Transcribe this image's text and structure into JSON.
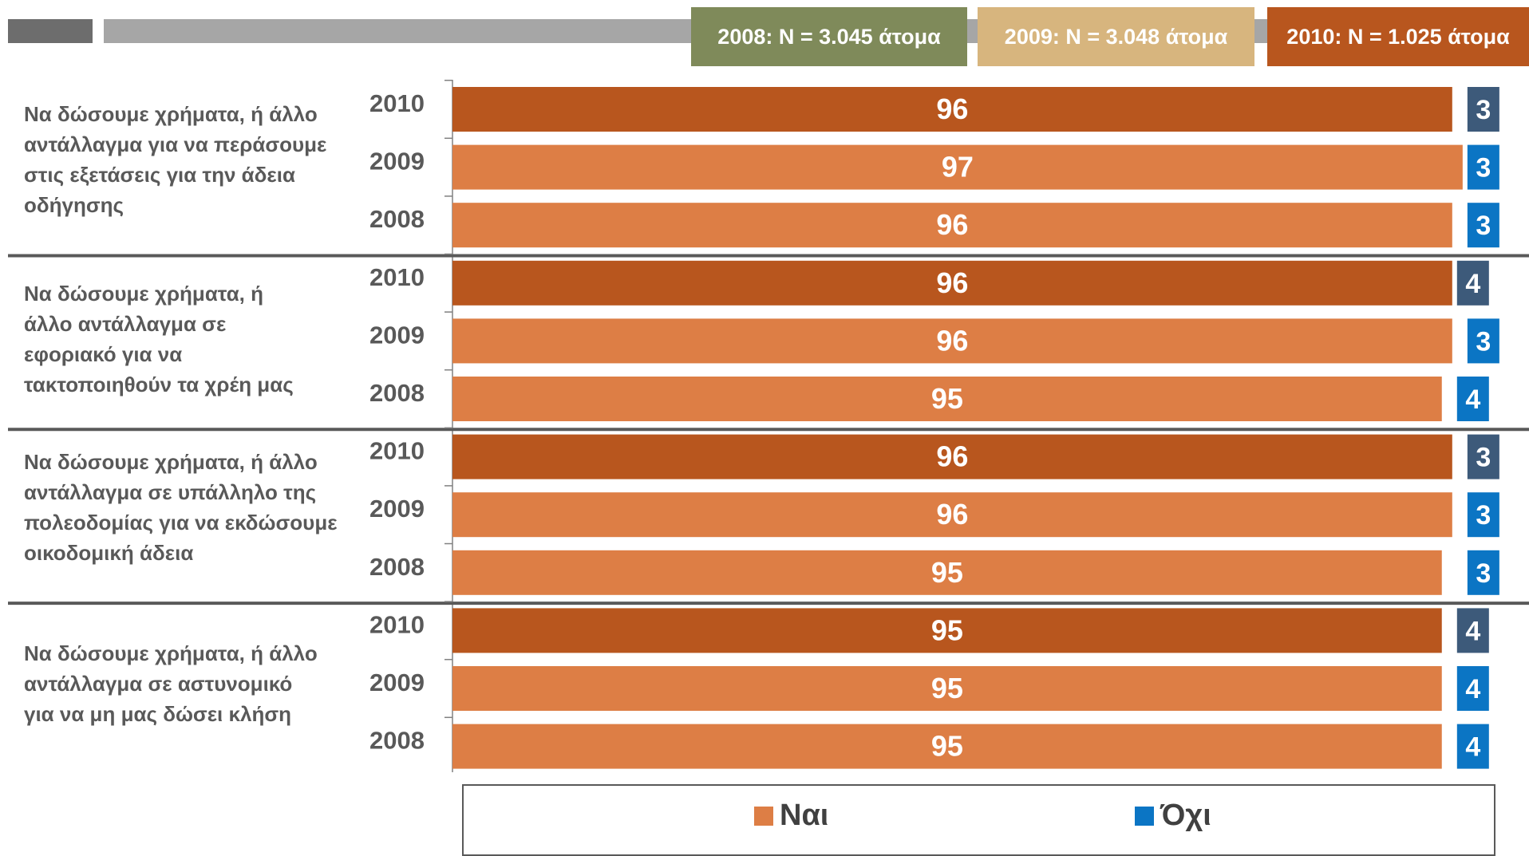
{
  "header": {
    "n_2008": "2008: N = 3.045 άτομα",
    "n_2009": "2009: N = 3.048 άτομα",
    "n_2010": "2010: N = 1.025 άτομα"
  },
  "colors": {
    "yes_2010": "#b8561e",
    "yes_other": "#dd7e45",
    "no_dark": "#3d5a7a",
    "no_blue": "#0b75c4",
    "n2008_box": "#7f8a5a",
    "n2009_box": "#d7b57e",
    "n2010_box": "#b8561e"
  },
  "legend": {
    "yes_label": "Ναι",
    "no_label": "Όχι"
  },
  "chart_data": {
    "type": "bar",
    "orientation": "horizontal",
    "stacked": true,
    "series": [
      {
        "name": "Ναι"
      },
      {
        "name": "Όχι"
      }
    ],
    "groups": [
      {
        "label": "Να δώσουμε χρήματα, ή άλλο αντάλλαγμα για να περάσουμε στις εξετάσεις για την άδεια οδήγησης",
        "rows": [
          {
            "year": "2010",
            "yes": 96,
            "no": 3
          },
          {
            "year": "2009",
            "yes": 97,
            "no": 3
          },
          {
            "year": "2008",
            "yes": 96,
            "no": 3
          }
        ]
      },
      {
        "label": "Να δώσουμε χρήματα, ή άλλο αντάλλαγμα σε εφοριακό για να τακτοποιηθούν τα χρέη μας",
        "rows": [
          {
            "year": "2010",
            "yes": 96,
            "no": 4
          },
          {
            "year": "2009",
            "yes": 96,
            "no": 3
          },
          {
            "year": "2008",
            "yes": 95,
            "no": 4
          }
        ]
      },
      {
        "label": "Να δώσουμε χρήματα, ή άλλο αντάλλαγμα σε υπάλληλο της πολεοδομίας για να εκδώσουμε οικοδομική άδεια",
        "rows": [
          {
            "year": "2010",
            "yes": 96,
            "no": 3
          },
          {
            "year": "2009",
            "yes": 96,
            "no": 3
          },
          {
            "year": "2008",
            "yes": 95,
            "no": 3
          }
        ]
      },
      {
        "label": "Να δώσουμε χρήματα, ή άλλο αντάλλαγμα σε αστυνομικό για να μη μας δώσει κλήση",
        "rows": [
          {
            "year": "2010",
            "yes": 95,
            "no": 4
          },
          {
            "year": "2009",
            "yes": 95,
            "no": 4
          },
          {
            "year": "2008",
            "yes": 95,
            "no": 4
          }
        ]
      }
    ]
  }
}
